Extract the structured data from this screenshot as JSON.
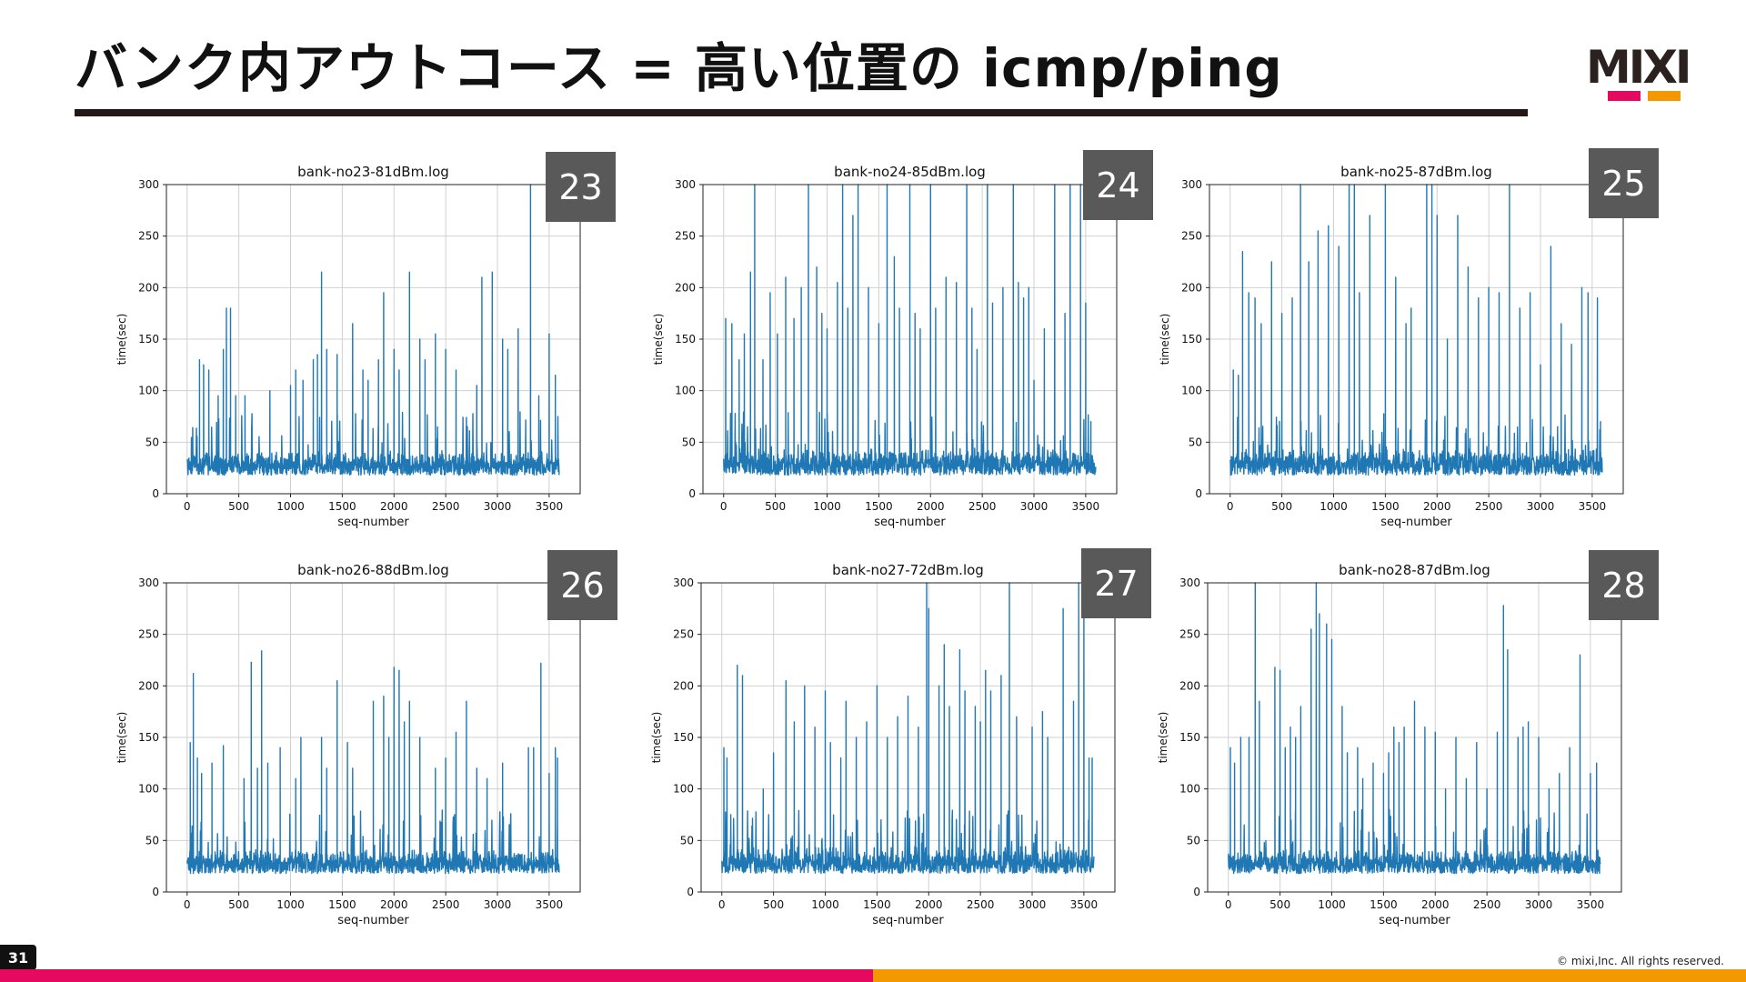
{
  "slide": {
    "title": "バンク内アウトコース = 高い位置の icmp/ping",
    "page_number": "31",
    "copyright": "© mixi,Inc. All rights reserved.",
    "logo_text": "MIXI",
    "colors": {
      "accent_pink": "#e5095f",
      "accent_orange": "#f39800",
      "line_blue": "#1f77b4",
      "badge_gray": "#595959"
    }
  },
  "chart_data": [
    {
      "type": "line",
      "badge": "23",
      "title": "bank-no23-81dBm.log",
      "xlabel": "seq-number",
      "ylabel": "time(sec)",
      "xlim": [
        -200,
        3800
      ],
      "ylim": [
        0,
        300
      ],
      "xticks": [
        0,
        500,
        1000,
        1500,
        2000,
        2500,
        3000,
        3500
      ],
      "yticks": [
        0,
        50,
        100,
        150,
        200,
        250,
        300
      ],
      "grid": true,
      "n_points": 3600,
      "baseline": [
        18,
        42
      ],
      "spikes": [
        [
          120,
          130
        ],
        [
          160,
          125
        ],
        [
          210,
          120
        ],
        [
          300,
          95
        ],
        [
          350,
          140
        ],
        [
          380,
          180
        ],
        [
          420,
          180
        ],
        [
          470,
          95
        ],
        [
          560,
          95
        ],
        [
          800,
          100
        ],
        [
          1000,
          105
        ],
        [
          1050,
          120
        ],
        [
          1120,
          110
        ],
        [
          1220,
          130
        ],
        [
          1260,
          135
        ],
        [
          1300,
          215
        ],
        [
          1350,
          140
        ],
        [
          1450,
          135
        ],
        [
          1600,
          165
        ],
        [
          1700,
          120
        ],
        [
          1750,
          110
        ],
        [
          1850,
          130
        ],
        [
          1900,
          195
        ],
        [
          2000,
          140
        ],
        [
          2050,
          120
        ],
        [
          2150,
          215
        ],
        [
          2250,
          150
        ],
        [
          2300,
          130
        ],
        [
          2400,
          155
        ],
        [
          2500,
          140
        ],
        [
          2600,
          120
        ],
        [
          2800,
          105
        ],
        [
          2850,
          210
        ],
        [
          2950,
          215
        ],
        [
          3050,
          150
        ],
        [
          3100,
          140
        ],
        [
          3200,
          160
        ],
        [
          3320,
          300
        ],
        [
          3400,
          95
        ],
        [
          3500,
          155
        ],
        [
          3560,
          115
        ]
      ]
    },
    {
      "type": "line",
      "badge": "24",
      "title": "bank-no24-85dBm.log",
      "xlabel": "seq-number",
      "ylabel": "time(sec)",
      "xlim": [
        -200,
        3800
      ],
      "ylim": [
        0,
        300
      ],
      "xticks": [
        0,
        500,
        1000,
        1500,
        2000,
        2500,
        3000,
        3500
      ],
      "yticks": [
        0,
        50,
        100,
        150,
        200,
        250,
        300
      ],
      "grid": true,
      "n_points": 3600,
      "baseline": [
        18,
        45
      ],
      "spikes": [
        [
          20,
          170
        ],
        [
          80,
          165
        ],
        [
          150,
          130
        ],
        [
          200,
          155
        ],
        [
          260,
          215
        ],
        [
          300,
          300
        ],
        [
          380,
          130
        ],
        [
          450,
          195
        ],
        [
          520,
          155
        ],
        [
          600,
          210
        ],
        [
          680,
          170
        ],
        [
          750,
          200
        ],
        [
          820,
          300
        ],
        [
          900,
          220
        ],
        [
          950,
          175
        ],
        [
          1000,
          160
        ],
        [
          1100,
          205
        ],
        [
          1150,
          300
        ],
        [
          1200,
          180
        ],
        [
          1250,
          270
        ],
        [
          1300,
          300
        ],
        [
          1400,
          200
        ],
        [
          1500,
          165
        ],
        [
          1580,
          300
        ],
        [
          1650,
          230
        ],
        [
          1700,
          180
        ],
        [
          1800,
          300
        ],
        [
          1850,
          175
        ],
        [
          1900,
          160
        ],
        [
          2000,
          300
        ],
        [
          2050,
          180
        ],
        [
          2150,
          210
        ],
        [
          2250,
          205
        ],
        [
          2350,
          300
        ],
        [
          2400,
          180
        ],
        [
          2450,
          140
        ],
        [
          2550,
          300
        ],
        [
          2600,
          185
        ],
        [
          2700,
          200
        ],
        [
          2800,
          300
        ],
        [
          2850,
          205
        ],
        [
          2900,
          190
        ],
        [
          2950,
          200
        ],
        [
          3000,
          110
        ],
        [
          3100,
          160
        ],
        [
          3200,
          300
        ],
        [
          3300,
          175
        ],
        [
          3350,
          300
        ],
        [
          3450,
          300
        ],
        [
          3500,
          185
        ],
        [
          3550,
          70
        ]
      ]
    },
    {
      "type": "line",
      "badge": "25",
      "title": "bank-no25-87dBm.log",
      "xlabel": "seq-number",
      "ylabel": "time(sec)",
      "xlim": [
        -200,
        3800
      ],
      "ylim": [
        0,
        300
      ],
      "xticks": [
        0,
        500,
        1000,
        1500,
        2000,
        2500,
        3000,
        3500
      ],
      "yticks": [
        0,
        50,
        100,
        150,
        200,
        250,
        300
      ],
      "grid": true,
      "n_points": 3600,
      "baseline": [
        18,
        45
      ],
      "spikes": [
        [
          30,
          120
        ],
        [
          80,
          115
        ],
        [
          120,
          235
        ],
        [
          180,
          195
        ],
        [
          240,
          190
        ],
        [
          300,
          165
        ],
        [
          400,
          225
        ],
        [
          500,
          175
        ],
        [
          600,
          190
        ],
        [
          680,
          300
        ],
        [
          760,
          225
        ],
        [
          850,
          255
        ],
        [
          950,
          260
        ],
        [
          1050,
          240
        ],
        [
          1150,
          300
        ],
        [
          1200,
          300
        ],
        [
          1250,
          195
        ],
        [
          1350,
          270
        ],
        [
          1500,
          300
        ],
        [
          1600,
          210
        ],
        [
          1700,
          165
        ],
        [
          1750,
          180
        ],
        [
          1900,
          300
        ],
        [
          1950,
          300
        ],
        [
          2000,
          270
        ],
        [
          2100,
          150
        ],
        [
          2200,
          270
        ],
        [
          2300,
          220
        ],
        [
          2400,
          190
        ],
        [
          2500,
          200
        ],
        [
          2600,
          195
        ],
        [
          2700,
          300
        ],
        [
          2800,
          180
        ],
        [
          2900,
          195
        ],
        [
          3000,
          125
        ],
        [
          3100,
          240
        ],
        [
          3200,
          165
        ],
        [
          3300,
          145
        ],
        [
          3400,
          200
        ],
        [
          3460,
          195
        ],
        [
          3550,
          190
        ],
        [
          3580,
          70
        ]
      ]
    },
    {
      "type": "line",
      "badge": "26",
      "title": "bank-no26-88dBm.log",
      "xlabel": "seq-number",
      "ylabel": "time(sec)",
      "xlim": [
        -200,
        3800
      ],
      "ylim": [
        0,
        300
      ],
      "xticks": [
        0,
        500,
        1000,
        1500,
        2000,
        2500,
        3000,
        3500
      ],
      "yticks": [
        0,
        50,
        100,
        150,
        200,
        250,
        300
      ],
      "grid": true,
      "n_points": 3600,
      "baseline": [
        18,
        42
      ],
      "spikes": [
        [
          30,
          145
        ],
        [
          60,
          212
        ],
        [
          100,
          130
        ],
        [
          140,
          115
        ],
        [
          240,
          125
        ],
        [
          350,
          142
        ],
        [
          550,
          110
        ],
        [
          620,
          223
        ],
        [
          680,
          120
        ],
        [
          720,
          234
        ],
        [
          780,
          125
        ],
        [
          900,
          140
        ],
        [
          1050,
          110
        ],
        [
          1100,
          150
        ],
        [
          1300,
          150
        ],
        [
          1350,
          120
        ],
        [
          1450,
          205
        ],
        [
          1550,
          145
        ],
        [
          1600,
          120
        ],
        [
          1800,
          185
        ],
        [
          1900,
          190
        ],
        [
          1950,
          150
        ],
        [
          2000,
          218
        ],
        [
          2050,
          215
        ],
        [
          2100,
          165
        ],
        [
          2150,
          185
        ],
        [
          2250,
          150
        ],
        [
          2400,
          120
        ],
        [
          2500,
          130
        ],
        [
          2600,
          155
        ],
        [
          2700,
          185
        ],
        [
          2800,
          120
        ],
        [
          2900,
          110
        ],
        [
          3050,
          125
        ],
        [
          3300,
          140
        ],
        [
          3350,
          140
        ],
        [
          3420,
          222
        ],
        [
          3500,
          115
        ],
        [
          3560,
          140
        ],
        [
          3580,
          130
        ]
      ]
    },
    {
      "type": "line",
      "badge": "27",
      "title": "bank-no27-72dBm.log",
      "xlabel": "seq-number",
      "ylabel": "time(sec)",
      "xlim": [
        -200,
        3800
      ],
      "ylim": [
        0,
        300
      ],
      "xticks": [
        0,
        500,
        1000,
        1500,
        2000,
        2500,
        3000,
        3500
      ],
      "yticks": [
        0,
        50,
        100,
        150,
        200,
        250,
        300
      ],
      "grid": true,
      "n_points": 3600,
      "baseline": [
        18,
        45
      ],
      "spikes": [
        [
          20,
          140
        ],
        [
          50,
          130
        ],
        [
          150,
          220
        ],
        [
          200,
          210
        ],
        [
          400,
          100
        ],
        [
          500,
          135
        ],
        [
          620,
          205
        ],
        [
          700,
          165
        ],
        [
          800,
          200
        ],
        [
          900,
          160
        ],
        [
          1000,
          195
        ],
        [
          1050,
          145
        ],
        [
          1150,
          130
        ],
        [
          1200,
          185
        ],
        [
          1300,
          150
        ],
        [
          1400,
          165
        ],
        [
          1500,
          200
        ],
        [
          1600,
          150
        ],
        [
          1700,
          170
        ],
        [
          1800,
          190
        ],
        [
          1900,
          160
        ],
        [
          1980,
          300
        ],
        [
          2000,
          275
        ],
        [
          2100,
          200
        ],
        [
          2150,
          240
        ],
        [
          2200,
          180
        ],
        [
          2300,
          235
        ],
        [
          2350,
          195
        ],
        [
          2450,
          180
        ],
        [
          2500,
          165
        ],
        [
          2550,
          215
        ],
        [
          2600,
          195
        ],
        [
          2700,
          210
        ],
        [
          2780,
          300
        ],
        [
          2850,
          170
        ],
        [
          3000,
          160
        ],
        [
          3100,
          175
        ],
        [
          3150,
          150
        ],
        [
          3300,
          275
        ],
        [
          3400,
          185
        ],
        [
          3450,
          300
        ],
        [
          3500,
          270
        ],
        [
          3550,
          130
        ],
        [
          3580,
          130
        ]
      ]
    },
    {
      "type": "line",
      "badge": "28",
      "title": "bank-no28-87dBm.log",
      "xlabel": "seq-number",
      "ylabel": "time(sec)",
      "xlim": [
        -200,
        3800
      ],
      "ylim": [
        0,
        300
      ],
      "xticks": [
        0,
        500,
        1000,
        1500,
        2000,
        2500,
        3000,
        3500
      ],
      "yticks": [
        0,
        50,
        100,
        150,
        200,
        250,
        300
      ],
      "grid": true,
      "n_points": 3600,
      "baseline": [
        18,
        42
      ],
      "spikes": [
        [
          20,
          140
        ],
        [
          60,
          125
        ],
        [
          120,
          150
        ],
        [
          200,
          150
        ],
        [
          260,
          300
        ],
        [
          300,
          185
        ],
        [
          450,
          218
        ],
        [
          500,
          215
        ],
        [
          550,
          140
        ],
        [
          600,
          160
        ],
        [
          650,
          150
        ],
        [
          700,
          180
        ],
        [
          800,
          255
        ],
        [
          850,
          300
        ],
        [
          880,
          270
        ],
        [
          950,
          260
        ],
        [
          1000,
          245
        ],
        [
          1100,
          180
        ],
        [
          1150,
          135
        ],
        [
          1250,
          140
        ],
        [
          1300,
          110
        ],
        [
          1400,
          125
        ],
        [
          1500,
          115
        ],
        [
          1550,
          135
        ],
        [
          1600,
          160
        ],
        [
          1650,
          145
        ],
        [
          1700,
          160
        ],
        [
          1800,
          185
        ],
        [
          1900,
          160
        ],
        [
          2000,
          155
        ],
        [
          2100,
          100
        ],
        [
          2200,
          150
        ],
        [
          2300,
          110
        ],
        [
          2400,
          145
        ],
        [
          2500,
          100
        ],
        [
          2600,
          155
        ],
        [
          2660,
          278
        ],
        [
          2700,
          235
        ],
        [
          2800,
          150
        ],
        [
          2850,
          160
        ],
        [
          2900,
          165
        ],
        [
          3000,
          150
        ],
        [
          3100,
          100
        ],
        [
          3200,
          115
        ],
        [
          3300,
          140
        ],
        [
          3400,
          230
        ],
        [
          3500,
          115
        ],
        [
          3560,
          125
        ]
      ]
    }
  ]
}
